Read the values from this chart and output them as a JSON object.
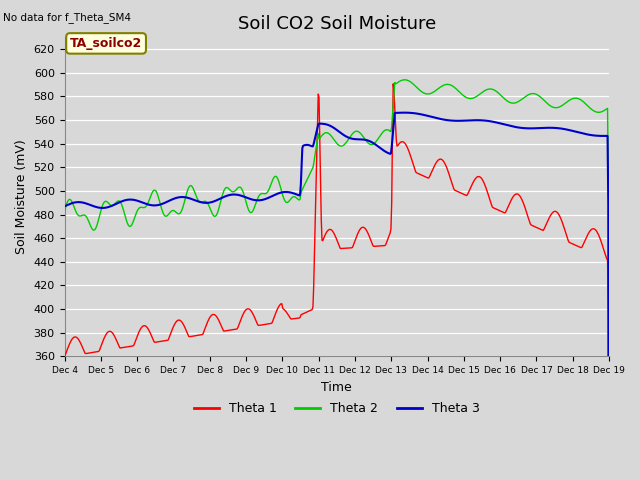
{
  "title": "Soil CO2 Soil Moisture",
  "ylabel": "Soil Moisture (mV)",
  "xlabel": "Time",
  "no_data_text": "No data for f_Theta_SM4",
  "legend_label_text": "TA_soilco2",
  "ylim": [
    360,
    630
  ],
  "yticks": [
    360,
    380,
    400,
    420,
    440,
    460,
    480,
    500,
    520,
    540,
    560,
    580,
    600,
    620
  ],
  "xtick_labels": [
    "Dec 4",
    "Dec 5",
    "Dec 6",
    "Dec 7",
    "Dec 8",
    "Dec 9",
    "Dec 10",
    "Dec 11",
    "Dec 12",
    "Dec 13",
    "Dec 14",
    "Dec 15",
    "Dec 16",
    "Dec 17",
    "Dec 18",
    "Dec 19"
  ],
  "bg_color": "#d8d8d8",
  "plot_bg_color": "#d8d8d8",
  "line_colors": {
    "theta1": "#ff0000",
    "theta2": "#00cc00",
    "theta3": "#0000cc"
  },
  "legend_entries": [
    "Theta 1",
    "Theta 2",
    "Theta 3"
  ],
  "title_fontsize": 13,
  "axis_fontsize": 9
}
